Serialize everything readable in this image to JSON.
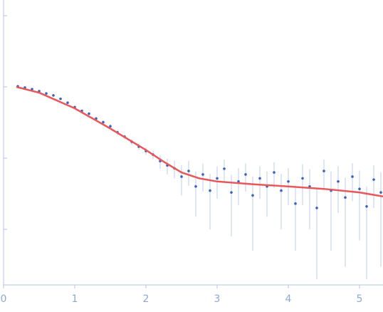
{
  "chart_data": {
    "type": "scatter",
    "x": [
      0.2,
      0.3,
      0.4,
      0.5,
      0.6,
      0.7,
      0.8,
      0.9,
      1.0,
      1.1,
      1.2,
      1.3,
      1.4,
      1.5,
      1.6,
      1.7,
      1.8,
      1.9,
      2.0,
      2.1,
      2.2,
      2.3,
      2.4,
      2.5,
      2.6,
      2.7,
      2.8,
      2.9,
      3.0,
      3.1,
      3.2,
      3.3,
      3.4,
      3.5,
      3.6,
      3.7,
      3.8,
      3.9,
      4.0,
      4.1,
      4.2,
      4.3,
      4.4,
      4.5,
      4.6,
      4.7,
      4.8,
      4.9,
      5.0,
      5.1,
      5.2,
      5.3
    ],
    "values": [
      0.102,
      0.098,
      0.093,
      0.087,
      0.081,
      0.076,
      0.068,
      0.06,
      0.052,
      0.046,
      0.042,
      0.036,
      0.032,
      0.028,
      0.023,
      0.02,
      0.017,
      0.0145,
      0.0126,
      0.0112,
      0.0091,
      0.0079,
      0.0072,
      0.0055,
      0.0066,
      0.004,
      0.0059,
      0.0035,
      0.0052,
      0.0071,
      0.0033,
      0.0047,
      0.0059,
      0.003,
      0.0052,
      0.004,
      0.0063,
      0.0035,
      0.0047,
      0.0023,
      0.0052,
      0.004,
      0.002,
      0.0066,
      0.0035,
      0.0047,
      0.0028,
      0.0055,
      0.0037,
      0.0021,
      0.005,
      0.0033
    ],
    "errors": [
      0.002,
      0.002,
      0.002,
      0.002,
      0.002,
      0.002,
      0.002,
      0.002,
      0.002,
      0.002,
      0.002,
      0.002,
      0.002,
      0.002,
      0.002,
      0.0015,
      0.0015,
      0.0015,
      0.0015,
      0.0015,
      0.002,
      0.002,
      0.002,
      0.0025,
      0.0025,
      0.0025,
      0.0025,
      0.0025,
      0.0025,
      0.0025,
      0.0025,
      0.0025,
      0.0025,
      0.0025,
      0.0025,
      0.0025,
      0.0025,
      0.0025,
      0.0025,
      0.0018,
      0.003,
      0.003,
      0.0018,
      0.003,
      0.003,
      0.003,
      0.0025,
      0.003,
      0.003,
      0.0019,
      0.003,
      0.003
    ],
    "color": "#3563c3",
    "error_color": "#bccbe7",
    "fit": {
      "x": [
        0.18,
        0.5,
        1.0,
        1.5,
        2.0,
        2.25,
        2.5,
        2.75,
        3.0,
        3.5,
        4.0,
        4.5,
        5.0,
        5.33
      ],
      "values": [
        0.1,
        0.083,
        0.05,
        0.026,
        0.013,
        0.0089,
        0.0063,
        0.0052,
        0.0047,
        0.0043,
        0.004,
        0.0037,
        0.0033,
        0.0029
      ],
      "color": "#e8575a"
    },
    "xlim": [
      0,
      5.33
    ],
    "xticks": [
      0,
      1,
      2,
      3,
      4,
      5
    ],
    "ylim": [
      0.000166,
      1.66
    ],
    "yticks": [
      0.001,
      0.01,
      0.1,
      1
    ],
    "ylog": true
  }
}
